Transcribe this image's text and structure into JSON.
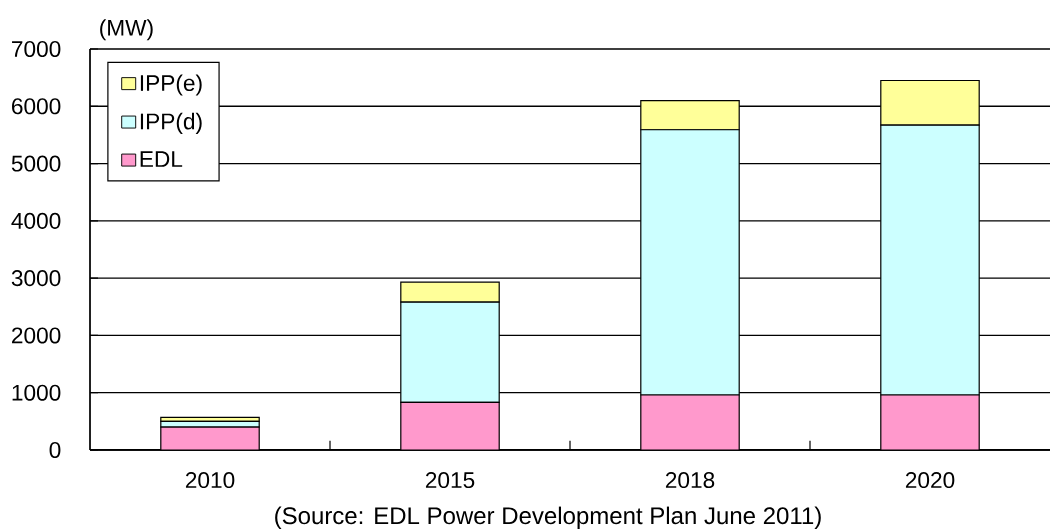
{
  "chart_data": {
    "type": "bar",
    "stacked": true,
    "ylabel": "(MW)",
    "categories": [
      "2010",
      "2015",
      "2018",
      "2020"
    ],
    "series": [
      {
        "name": "EDL",
        "color": "#ff99cc",
        "values": [
          400,
          830,
          960,
          960
        ]
      },
      {
        "name": "IPP(d)",
        "color": "#ccffff",
        "values": [
          100,
          1750,
          4630,
          4710
        ]
      },
      {
        "name": "IPP(e)",
        "color": "#ffff99",
        "values": [
          70,
          350,
          510,
          780
        ]
      }
    ],
    "ylim": [
      0,
      7000
    ],
    "yticks": [
      0,
      1000,
      2000,
      3000,
      4000,
      5000,
      6000,
      7000
    ],
    "grid": "y",
    "legend": "top left",
    "annotations": [
      "(Source: EDL Power Development Plan June 2011)"
    ]
  }
}
